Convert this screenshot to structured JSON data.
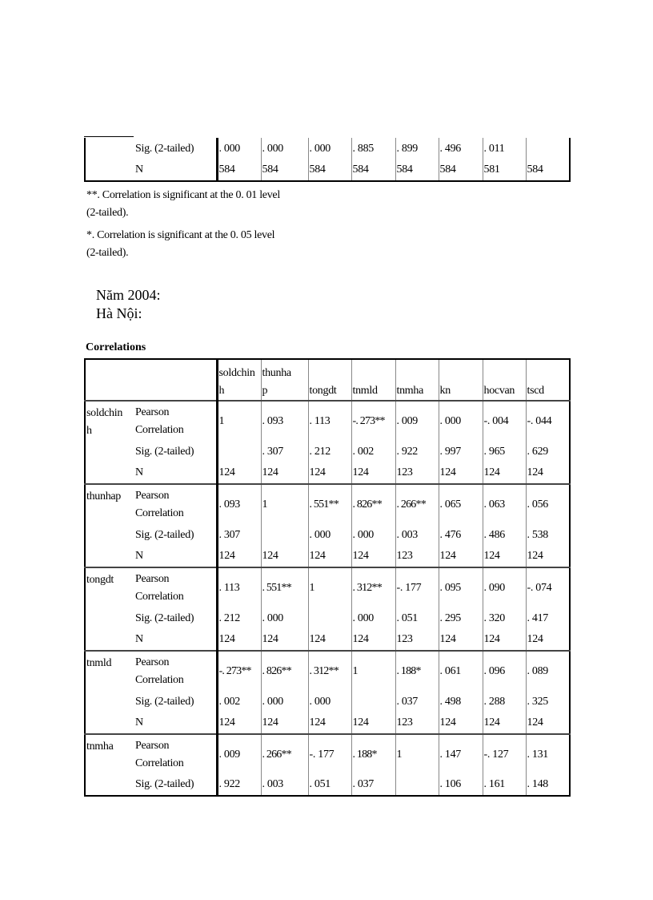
{
  "top_table": {
    "rows": [
      {
        "label": "Sig. (2-tailed)",
        "values": [
          ". 000",
          ". 000",
          ". 000",
          ". 885",
          ". 899",
          ". 496",
          ". 011",
          ""
        ]
      },
      {
        "label": "N",
        "values": [
          "584",
          "584",
          "584",
          "584",
          "584",
          "584",
          "581",
          "584"
        ]
      }
    ]
  },
  "footnotes": [
    "**. Correlation is significant at the 0. 01 level",
    "(2-tailed).",
    "*. Correlation is significant at the 0. 05 level",
    "(2-tailed)."
  ],
  "headings": {
    "year": "Năm 2004:",
    "city": "Hà Nội:"
  },
  "correlations": {
    "title": "Correlations",
    "columns": [
      [
        "soldchin",
        "h"
      ],
      [
        "thunha",
        "p"
      ],
      [
        "",
        "tongdt"
      ],
      [
        "",
        "tnmld"
      ],
      [
        "",
        "tnmha"
      ],
      [
        "",
        "kn"
      ],
      [
        "",
        "hocvan"
      ],
      [
        "",
        "tscd"
      ]
    ],
    "stat_labels": {
      "pearson": [
        "Pearson",
        "Correlation"
      ],
      "sig": "Sig. (2-tailed)",
      "n": "N"
    },
    "blocks": [
      {
        "var": [
          "soldchin",
          "h"
        ],
        "pearson": [
          "1",
          ". 093",
          ". 113",
          "-. 273**",
          ". 009",
          ". 000",
          "-. 004",
          "-. 044"
        ],
        "sig": [
          "",
          ". 307",
          ". 212",
          ". 002",
          ". 922",
          ". 997",
          ". 965",
          ". 629"
        ],
        "n": [
          "124",
          "124",
          "124",
          "124",
          "123",
          "124",
          "124",
          "124"
        ]
      },
      {
        "var": [
          "thunhap",
          ""
        ],
        "pearson": [
          ". 093",
          "1",
          ". 551**",
          ". 826**",
          ". 266**",
          ". 065",
          ". 063",
          ". 056"
        ],
        "sig": [
          ". 307",
          "",
          ". 000",
          ". 000",
          ". 003",
          ". 476",
          ". 486",
          ". 538"
        ],
        "n": [
          "124",
          "124",
          "124",
          "124",
          "123",
          "124",
          "124",
          "124"
        ]
      },
      {
        "var": [
          "tongdt",
          ""
        ],
        "pearson": [
          ". 113",
          ". 551**",
          "1",
          ". 312**",
          "-. 177",
          ". 095",
          ". 090",
          "-. 074"
        ],
        "sig": [
          ". 212",
          ". 000",
          "",
          ". 000",
          ". 051",
          ". 295",
          ". 320",
          ". 417"
        ],
        "n": [
          "124",
          "124",
          "124",
          "124",
          "123",
          "124",
          "124",
          "124"
        ]
      },
      {
        "var": [
          "tnmld",
          ""
        ],
        "pearson": [
          "-. 273**",
          ". 826**",
          ". 312**",
          "1",
          ". 188*",
          ". 061",
          ". 096",
          ". 089"
        ],
        "sig": [
          ". 002",
          ". 000",
          ". 000",
          "",
          ". 037",
          ". 498",
          ". 288",
          ". 325"
        ],
        "n": [
          "124",
          "124",
          "124",
          "124",
          "123",
          "124",
          "124",
          "124"
        ]
      },
      {
        "var": [
          "tnmha",
          ""
        ],
        "pearson": [
          ". 009",
          ". 266**",
          "-. 177",
          ". 188*",
          "1",
          ". 147",
          "-. 127",
          ". 131"
        ],
        "sig": [
          ". 922",
          ". 003",
          ". 051",
          ". 037",
          "",
          ". 106",
          ". 161",
          ". 148"
        ]
      }
    ]
  }
}
